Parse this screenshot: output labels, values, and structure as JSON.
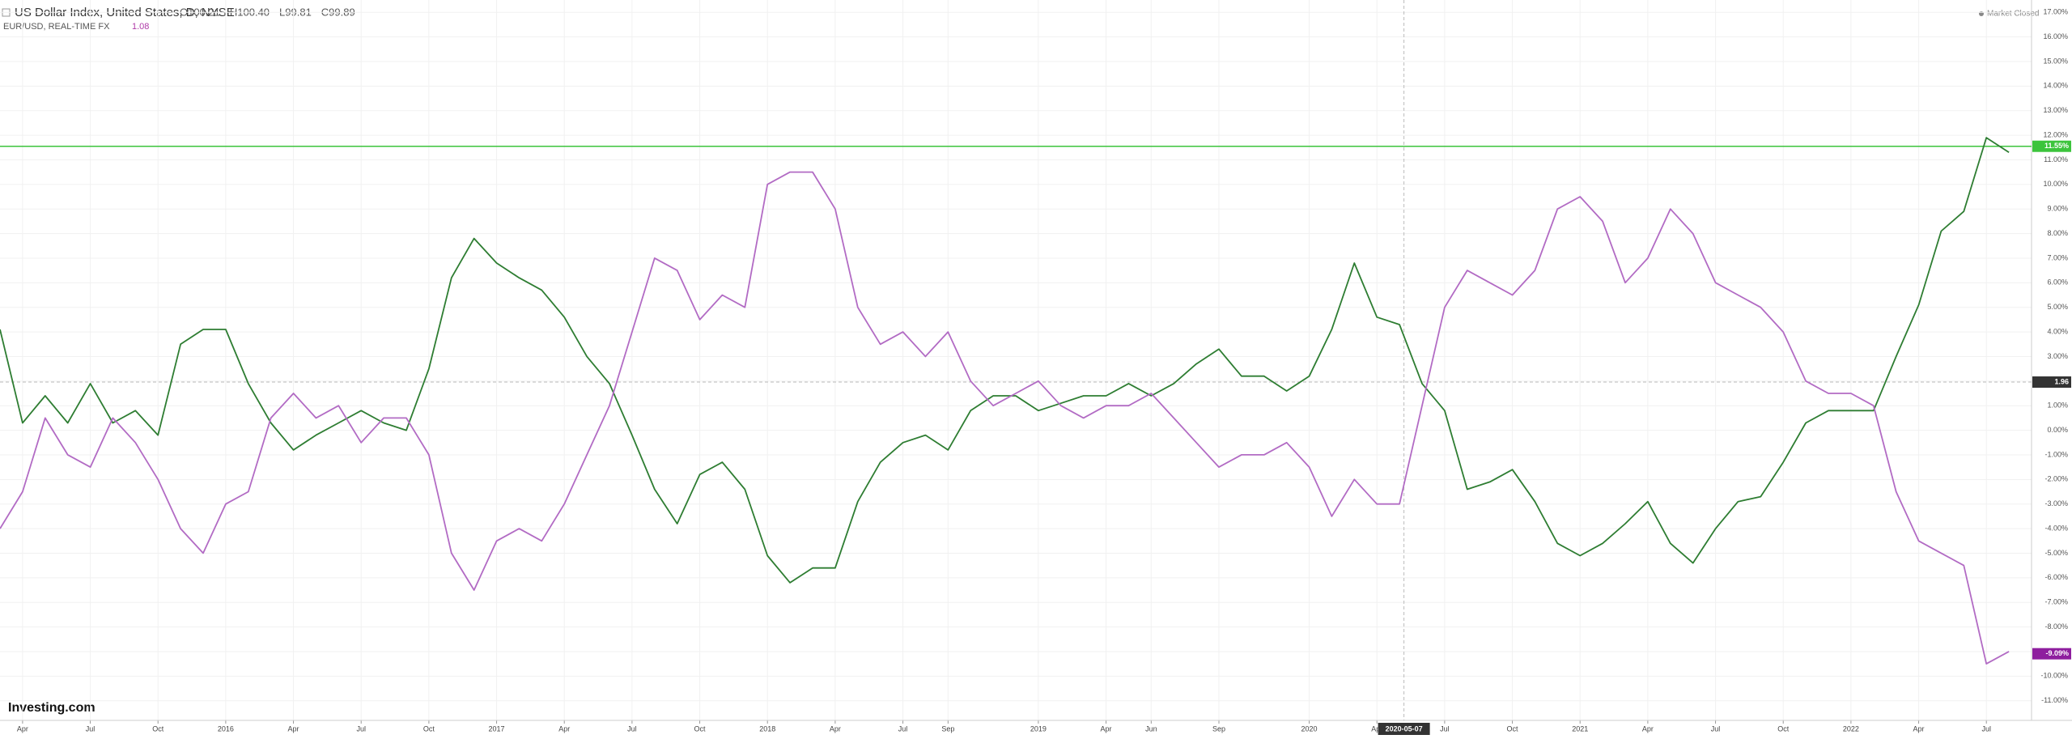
{
  "chart_data": {
    "type": "line",
    "title": "US Dollar Index, United States, D, NYSE",
    "ohlc": [
      "O100.21",
      "H100.40",
      "L99.81",
      "C99.89"
    ],
    "compare_label": "EUR/USD, REAL-TIME FX",
    "compare_value": "1.08",
    "status": "Market Closed",
    "logo": "Investing.com",
    "x": [
      "2015-03",
      "2015-04",
      "2015-05",
      "2015-06",
      "2015-07",
      "2015-08",
      "2015-09",
      "2015-10",
      "2015-11",
      "2015-12",
      "2016-01",
      "2016-02",
      "2016-03",
      "2016-04",
      "2016-05",
      "2016-06",
      "2016-07",
      "2016-08",
      "2016-09",
      "2016-10",
      "2016-11",
      "2016-12",
      "2017-01",
      "2017-02",
      "2017-03",
      "2017-04",
      "2017-05",
      "2017-06",
      "2017-07",
      "2017-08",
      "2017-09",
      "2017-10",
      "2017-11",
      "2017-12",
      "2018-01",
      "2018-02",
      "2018-03",
      "2018-04",
      "2018-05",
      "2018-06",
      "2018-07",
      "2018-08",
      "2018-09",
      "2018-10",
      "2018-11",
      "2018-12",
      "2019-01",
      "2019-02",
      "2019-03",
      "2019-04",
      "2019-05",
      "2019-06",
      "2019-07",
      "2019-08",
      "2019-09",
      "2019-10",
      "2019-11",
      "2019-12",
      "2020-01",
      "2020-02",
      "2020-03",
      "2020-04",
      "2020-05",
      "2020-06",
      "2020-07",
      "2020-08",
      "2020-09",
      "2020-10",
      "2020-11",
      "2020-12",
      "2021-01",
      "2021-02",
      "2021-03",
      "2021-04",
      "2021-05",
      "2021-06",
      "2021-07",
      "2021-08",
      "2021-09",
      "2021-10",
      "2021-11",
      "2021-12",
      "2022-01",
      "2022-02",
      "2022-03",
      "2022-04",
      "2022-05",
      "2022-06",
      "2022-07",
      "2022-08"
    ],
    "series": [
      {
        "name": "US Dollar Index",
        "color": "#2e7d32",
        "values": [
          4.1,
          0.3,
          1.4,
          0.3,
          1.9,
          0.3,
          0.8,
          -0.2,
          3.5,
          4.1,
          4.1,
          1.9,
          0.3,
          -0.8,
          -0.2,
          0.3,
          0.8,
          0.3,
          0,
          2.5,
          6.2,
          7.8,
          6.8,
          6.2,
          5.7,
          4.6,
          3.0,
          1.9,
          -0.2,
          -2.4,
          -3.8,
          -1.8,
          -1.3,
          -2.4,
          -5.1,
          -6.2,
          -5.6,
          -5.6,
          -2.9,
          -1.3,
          -0.5,
          -0.2,
          -0.8,
          0.8,
          1.4,
          1.4,
          0.8,
          1.1,
          1.4,
          1.4,
          1.9,
          1.4,
          1.9,
          2.7,
          3.3,
          2.2,
          2.2,
          1.6,
          2.2,
          4.1,
          6.8,
          4.6,
          4.3,
          1.9,
          0.8,
          -2.4,
          -2.1,
          -1.6,
          -2.9,
          -4.6,
          -5.1,
          -4.6,
          -3.8,
          -2.9,
          -4.6,
          -5.4,
          -4.0,
          -2.9,
          -2.7,
          -1.3,
          0.3,
          0.8,
          0.8,
          0.8,
          3.0,
          5.1,
          8.1,
          8.9,
          11.9,
          11.3
        ]
      },
      {
        "name": "EUR/USD",
        "color": "#b26bc4",
        "values": [
          -4.0,
          -2.5,
          0.5,
          -1.0,
          -1.5,
          0.5,
          -0.5,
          -2.0,
          -4.0,
          -5.0,
          -3.0,
          -2.5,
          0.5,
          1.5,
          0.5,
          1.0,
          -0.5,
          0.5,
          0.5,
          -1.0,
          -5.0,
          -6.5,
          -4.5,
          -4.0,
          -4.5,
          -3.0,
          -1.0,
          1.0,
          4.0,
          7.0,
          6.5,
          4.5,
          5.5,
          5.0,
          10.0,
          10.5,
          10.5,
          9.0,
          5.0,
          3.5,
          4.0,
          3.0,
          4.0,
          2.0,
          1.0,
          1.5,
          2.0,
          1.0,
          0.5,
          1.0,
          1.0,
          1.5,
          0.5,
          -0.5,
          -1.5,
          -1.0,
          -1.0,
          -0.5,
          -1.5,
          -3.5,
          -2.0,
          -3.0,
          -3.0,
          1.0,
          5.0,
          6.5,
          6.0,
          5.5,
          6.5,
          9.0,
          9.5,
          8.5,
          6.0,
          7.0,
          9.0,
          8.0,
          6.0,
          5.5,
          5.0,
          4.0,
          2.0,
          1.5,
          1.5,
          1.0,
          -2.5,
          -4.5,
          -5.0,
          -5.5,
          -9.5,
          -9.0
        ]
      }
    ],
    "xlim": [
      "2015-03",
      "2022-09"
    ],
    "ylim": [
      -11.8,
      17.5
    ],
    "xticks": [
      {
        "value": "2015-04",
        "label": "Apr"
      },
      {
        "value": "2015-07",
        "label": "Jul"
      },
      {
        "value": "2015-10",
        "label": "Oct"
      },
      {
        "value": "2016-01",
        "label": "2016"
      },
      {
        "value": "2016-04",
        "label": "Apr"
      },
      {
        "value": "2016-07",
        "label": "Jul"
      },
      {
        "value": "2016-10",
        "label": "Oct"
      },
      {
        "value": "2017-01",
        "label": "2017"
      },
      {
        "value": "2017-04",
        "label": "Apr"
      },
      {
        "value": "2017-07",
        "label": "Jul"
      },
      {
        "value": "2017-10",
        "label": "Oct"
      },
      {
        "value": "2018-01",
        "label": "2018"
      },
      {
        "value": "2018-04",
        "label": "Apr"
      },
      {
        "value": "2018-07",
        "label": "Jul"
      },
      {
        "value": "2018-09",
        "label": "Sep"
      },
      {
        "value": "2019-01",
        "label": "2019"
      },
      {
        "value": "2019-04",
        "label": "Apr"
      },
      {
        "value": "2019-06",
        "label": "Jun"
      },
      {
        "value": "2019-09",
        "label": "Sep"
      },
      {
        "value": "2020-01",
        "label": "2020"
      },
      {
        "value": "2020-04",
        "label": "Apr"
      },
      {
        "value": "2020-07",
        "label": "Jul"
      },
      {
        "value": "2020-10",
        "label": "Oct"
      },
      {
        "value": "2021-01",
        "label": "2021"
      },
      {
        "value": "2021-04",
        "label": "Apr"
      },
      {
        "value": "2021-07",
        "label": "Jul"
      },
      {
        "value": "2021-10",
        "label": "Oct"
      },
      {
        "value": "2022-01",
        "label": "2022"
      },
      {
        "value": "2022-04",
        "label": "Apr"
      },
      {
        "value": "2022-07",
        "label": "Jul"
      }
    ],
    "yticks": [
      {
        "value": 17,
        "label": "17.00%"
      },
      {
        "value": 16,
        "label": "16.00%"
      },
      {
        "value": 15,
        "label": "15.00%"
      },
      {
        "value": 14,
        "label": "14.00%"
      },
      {
        "value": 13,
        "label": "13.00%"
      },
      {
        "value": 12,
        "label": "12.00%"
      },
      {
        "value": 11,
        "label": "11.00%"
      },
      {
        "value": 10,
        "label": "10.00%"
      },
      {
        "value": 9,
        "label": "9.00%"
      },
      {
        "value": 8,
        "label": "8.00%"
      },
      {
        "value": 7,
        "label": "7.00%"
      },
      {
        "value": 6,
        "label": "6.00%"
      },
      {
        "value": 5,
        "label": "5.00%"
      },
      {
        "value": 4,
        "label": "4.00%"
      },
      {
        "value": 3,
        "label": "3.00%"
      },
      {
        "value": 2,
        "label": "2.00%"
      },
      {
        "value": 1,
        "label": "1.00%"
      },
      {
        "value": 0,
        "label": "0.00%"
      },
      {
        "value": -1,
        "label": "-1.00%"
      },
      {
        "value": -2,
        "label": "-2.00%"
      },
      {
        "value": -3,
        "label": "-3.00%"
      },
      {
        "value": -4,
        "label": "-4.00%"
      },
      {
        "value": -5,
        "label": "-5.00%"
      },
      {
        "value": -6,
        "label": "-6.00%"
      },
      {
        "value": -7,
        "label": "-7.00%"
      },
      {
        "value": -8,
        "label": "-8.00%"
      },
      {
        "value": -9,
        "label": "-9.00%"
      },
      {
        "value": -10,
        "label": "-10.00%"
      },
      {
        "value": -11,
        "label": "-11.00%"
      }
    ],
    "grid": true,
    "price_line": {
      "value": 11.55,
      "label": "11.55%",
      "color": "#3cc43c"
    },
    "compare_marker": {
      "value": -9.09,
      "label": "-9.09%",
      "color": "#8e1e9e"
    },
    "crosshair": {
      "x_label": "2020-05-07",
      "y": 1.96
    }
  }
}
